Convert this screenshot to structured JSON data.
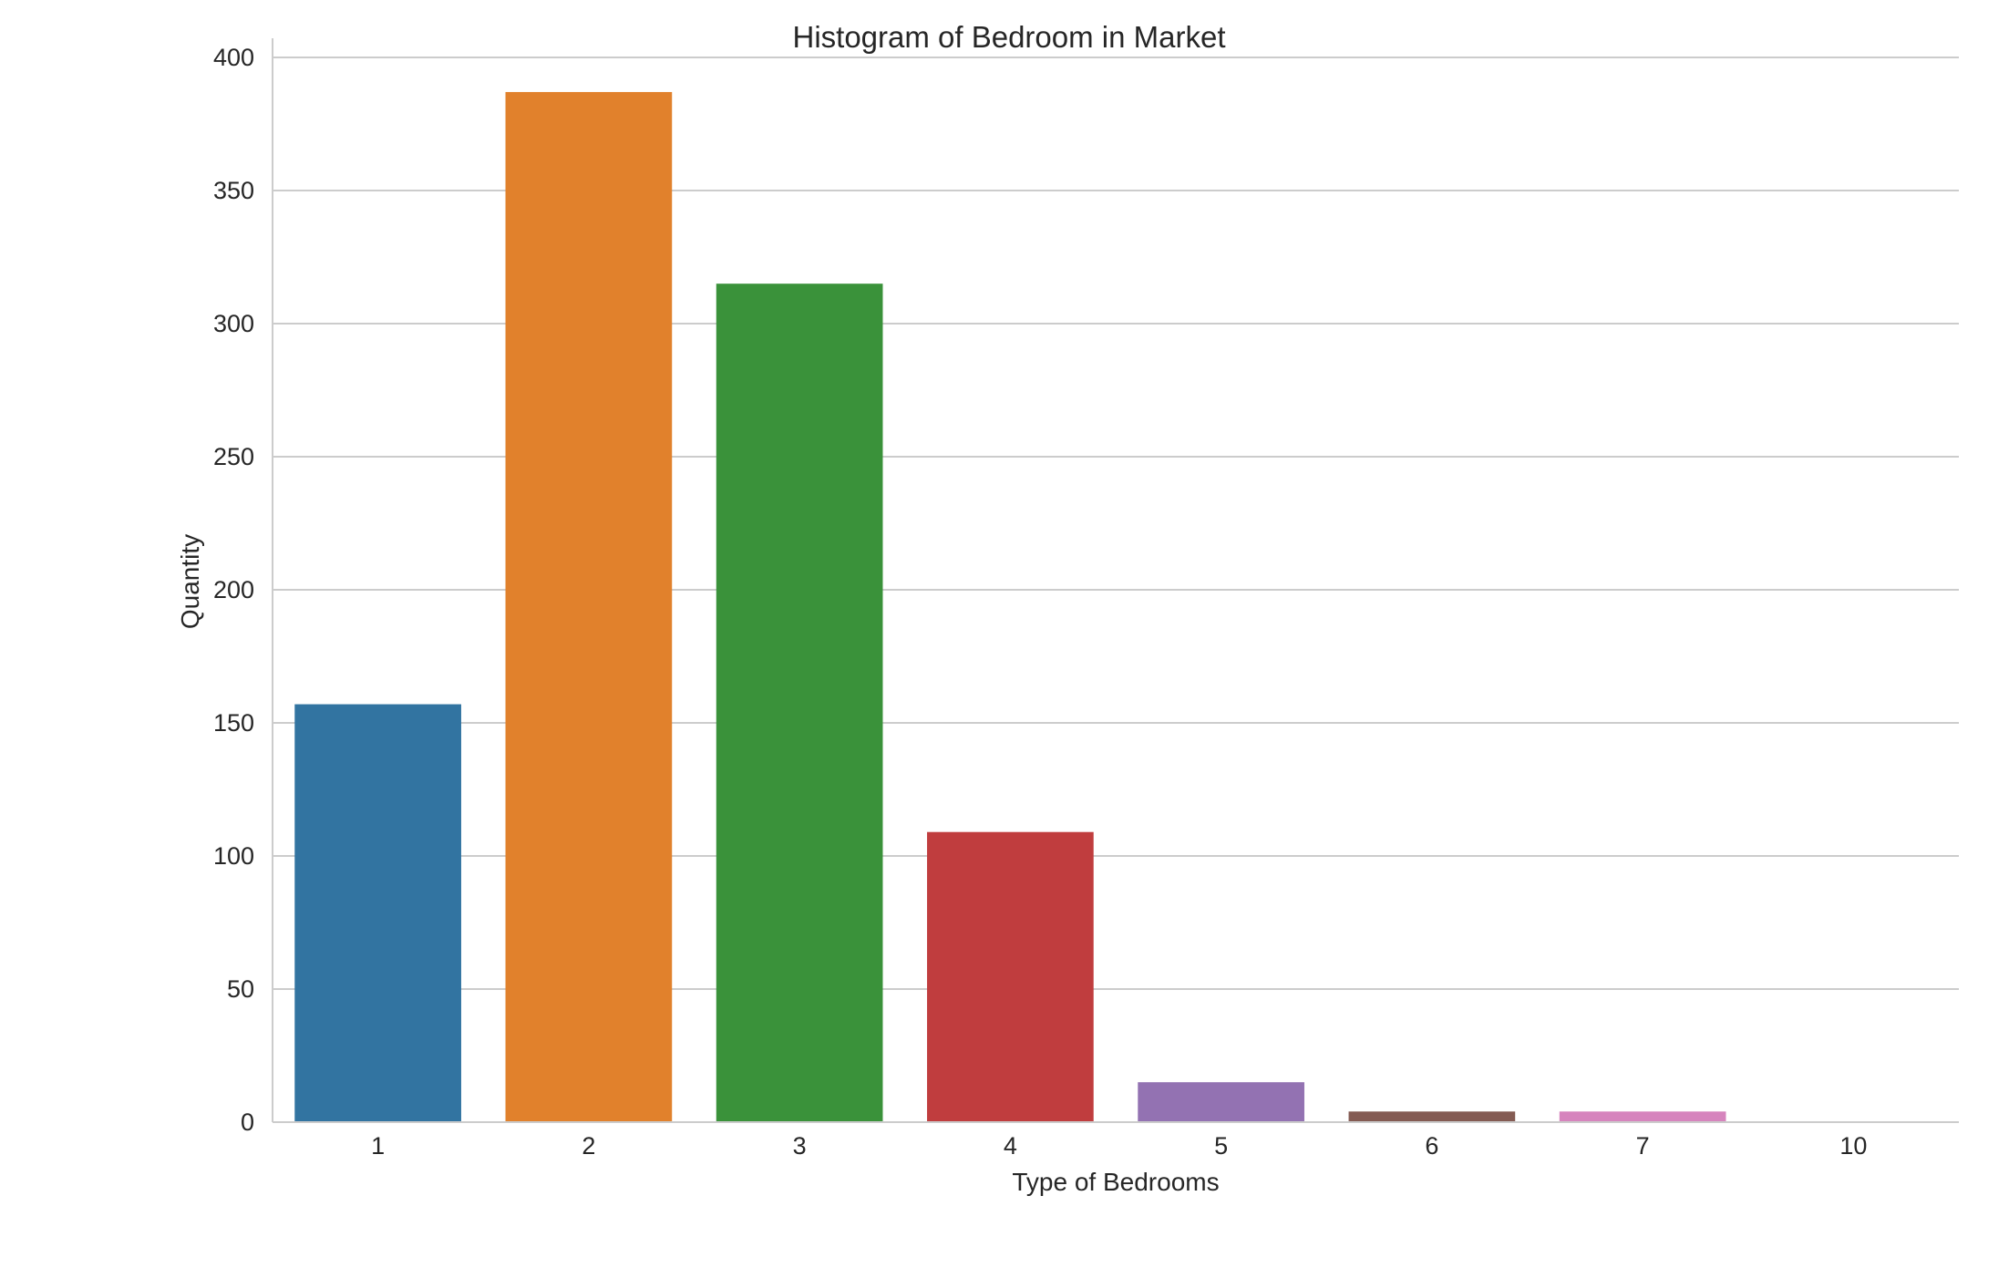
{
  "chart_data": {
    "type": "bar",
    "title": "Histogram of Bedroom in Market",
    "xlabel": "Type of Bedrooms",
    "ylabel": "Quantity",
    "categories": [
      "1",
      "2",
      "3",
      "4",
      "5",
      "6",
      "7",
      "10"
    ],
    "values": [
      157,
      387,
      315,
      109,
      15,
      4,
      4,
      0
    ],
    "ylim": [
      0,
      400
    ],
    "yticks": [
      0,
      50,
      100,
      150,
      200,
      250,
      300,
      350,
      400
    ],
    "grid": "horizontal",
    "colors": [
      "#3274a1",
      "#e1812c",
      "#3a923a",
      "#c03d3e",
      "#9372b2",
      "#845b53",
      "#d684bd",
      "#7f7f7f"
    ]
  }
}
